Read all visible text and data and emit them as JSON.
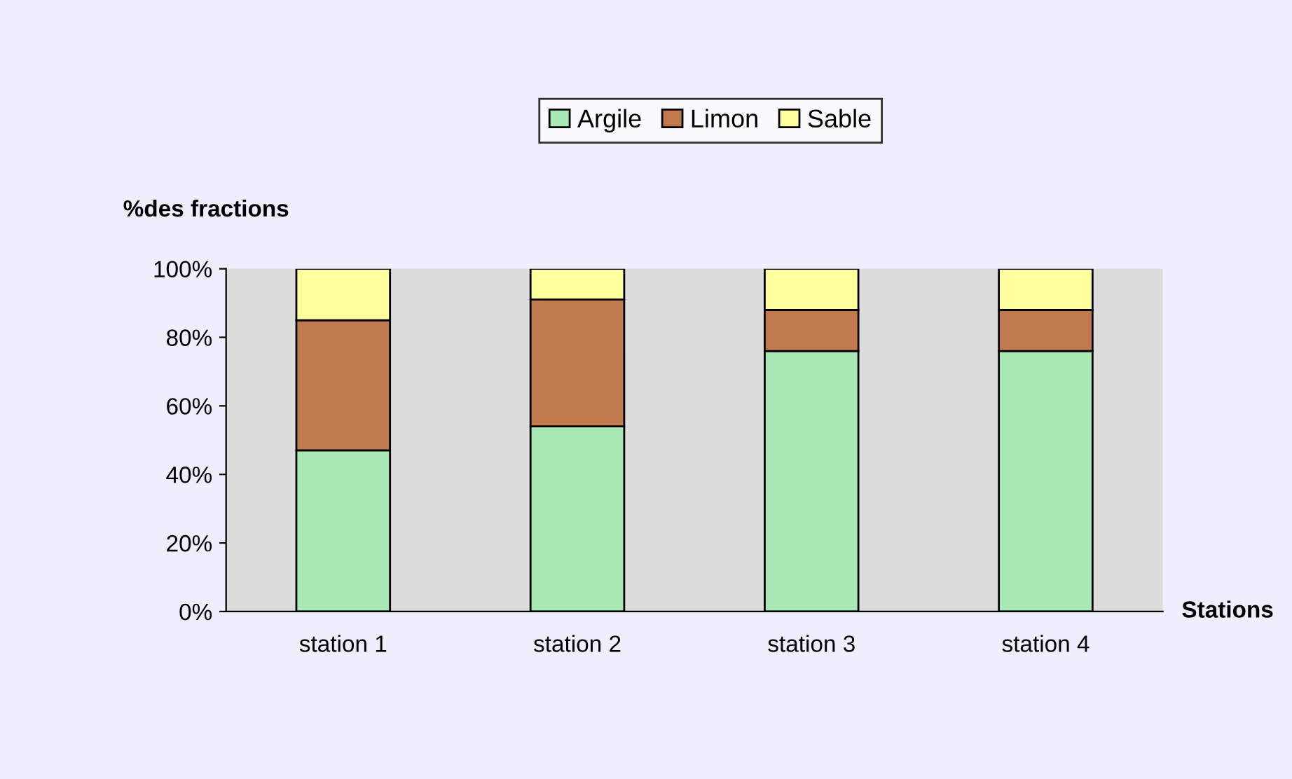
{
  "chart_data": {
    "type": "bar",
    "stacked": true,
    "xlabel": "Stations",
    "ylabel": "%des fractions",
    "categories": [
      "station 1",
      "station 2",
      "station 3",
      "station 4"
    ],
    "series": [
      {
        "name": "Argile",
        "color": "#a8e8b4",
        "values": [
          47,
          54,
          76,
          76
        ]
      },
      {
        "name": "Limon",
        "color": "#c07a4e",
        "values": [
          38,
          37,
          12,
          12
        ]
      },
      {
        "name": "Sable",
        "color": "#ffff9e",
        "values": [
          15,
          9,
          12,
          12
        ]
      }
    ],
    "ylim": [
      0,
      100
    ],
    "yticks": [
      {
        "value": 0,
        "label": "0%"
      },
      {
        "value": 20,
        "label": "20%"
      },
      {
        "value": 40,
        "label": "40%"
      },
      {
        "value": 60,
        "label": "60%"
      },
      {
        "value": 80,
        "label": "80%"
      },
      {
        "value": 100,
        "label": "100%"
      }
    ],
    "grid": false,
    "legend": "top"
  }
}
